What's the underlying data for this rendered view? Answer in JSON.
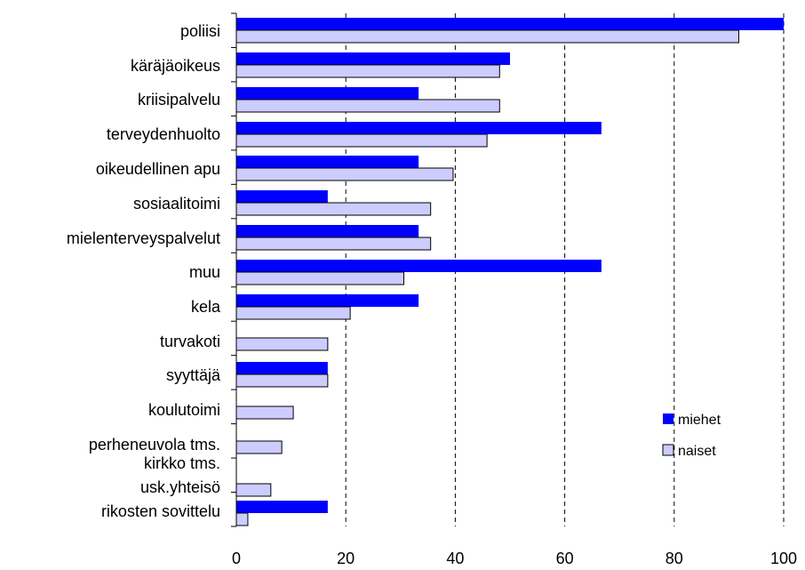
{
  "chart_data": {
    "type": "bar",
    "orientation": "horizontal",
    "categories": [
      "poliisi",
      "käräjäoikeus",
      "kriisipalvelu",
      "terveydenhuolto",
      "oikeudellinen apu",
      "sosiaalitoimi",
      "mielenterveyspalvelut",
      "muu",
      "kela",
      "turvakoti",
      "syyttäjä",
      "koulutoimi",
      "perheneuvola tms.",
      "kirkko tms.",
      "usk.yhteisö",
      "rikosten sovittelu"
    ],
    "series": [
      {
        "name": "miehet",
        "color": "#0000FF",
        "values": [
          100,
          50,
          33.3,
          66.7,
          33.3,
          16.7,
          33.3,
          66.7,
          33.3,
          0,
          16.7,
          0,
          0,
          null,
          0,
          16.7
        ]
      },
      {
        "name": "naiset",
        "color": "#CCCCFF",
        "values": [
          91.8,
          48.1,
          48.1,
          45.8,
          39.6,
          35.5,
          35.5,
          30.6,
          20.8,
          16.7,
          16.7,
          10.4,
          8.3,
          null,
          6.3,
          2.1
        ]
      }
    ],
    "xlim": [
      0,
      100
    ],
    "xticks": [
      "0",
      "20",
      "40",
      "60",
      "80",
      "100"
    ],
    "grid": "vertical dashed",
    "legend": "bottom-right",
    "title": "",
    "xlabel": "",
    "ylabel": ""
  }
}
